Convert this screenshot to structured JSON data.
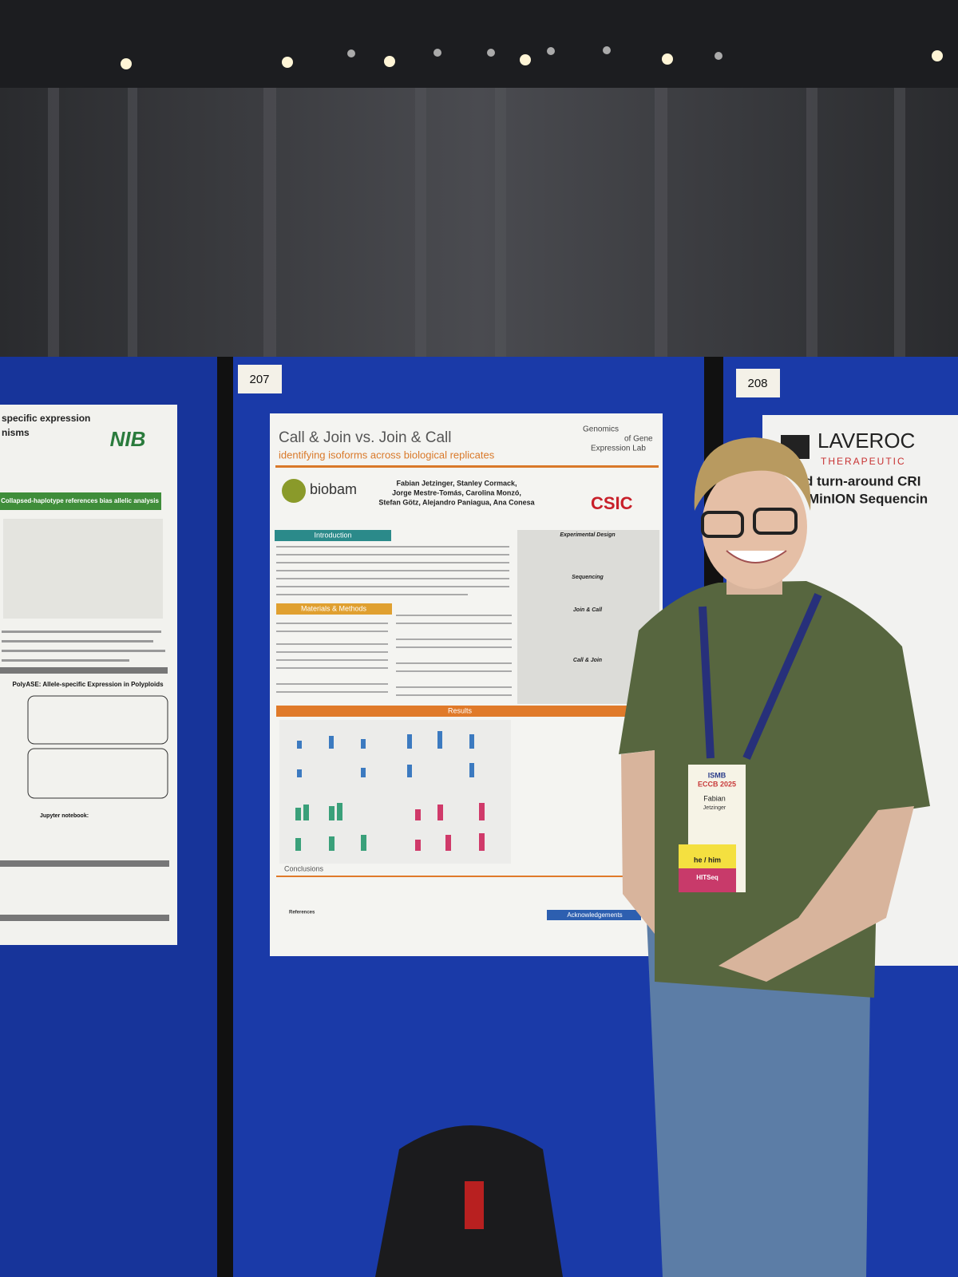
{
  "boards": [
    {
      "number": "207"
    },
    {
      "number": "208"
    }
  ],
  "center_poster": {
    "title": "Call & Join vs. Join & Call",
    "subtitle": "identifying isoforms across biological replicates",
    "lab": [
      "Genomics",
      "of Gene",
      "Expression Lab"
    ],
    "logos": [
      "biobam",
      "CSIC"
    ],
    "authors": [
      "Fabian Jetzinger, Stanley Cormack,",
      "Jorge Mestre-Tomás, Carolina Monzó,",
      "Stefan Götz, Alejandro Paniagua, Ana Conesa"
    ],
    "sections": [
      "Introduction",
      "Materials & Methods",
      "Results",
      "Conclusions",
      "References",
      "Acknowledgements"
    ],
    "panels": [
      "Experimental Design",
      "Sequencing",
      "Join & Call",
      "Call & Join"
    ]
  },
  "left_poster": {
    "title_lines": [
      "specific expression",
      "nisms"
    ],
    "logo": "NIB",
    "banners": [
      "Collapsed-haplotype references bias allelic analysis",
      "PolyASE: Allele-specific Expression in Polyploids",
      "Jupyter notebook:"
    ]
  },
  "right_poster": {
    "logo": "LAVEROC",
    "tagline": "THERAPEUTIC",
    "title_lines": [
      "d turn-around CRI",
      "MinION Sequencin"
    ]
  },
  "badge": {
    "event": [
      "ISMB",
      "ECCB 2025"
    ],
    "name": "Fabian",
    "surname": "Jetzinger",
    "pronouns": "he / him",
    "track": "HITSeq"
  }
}
